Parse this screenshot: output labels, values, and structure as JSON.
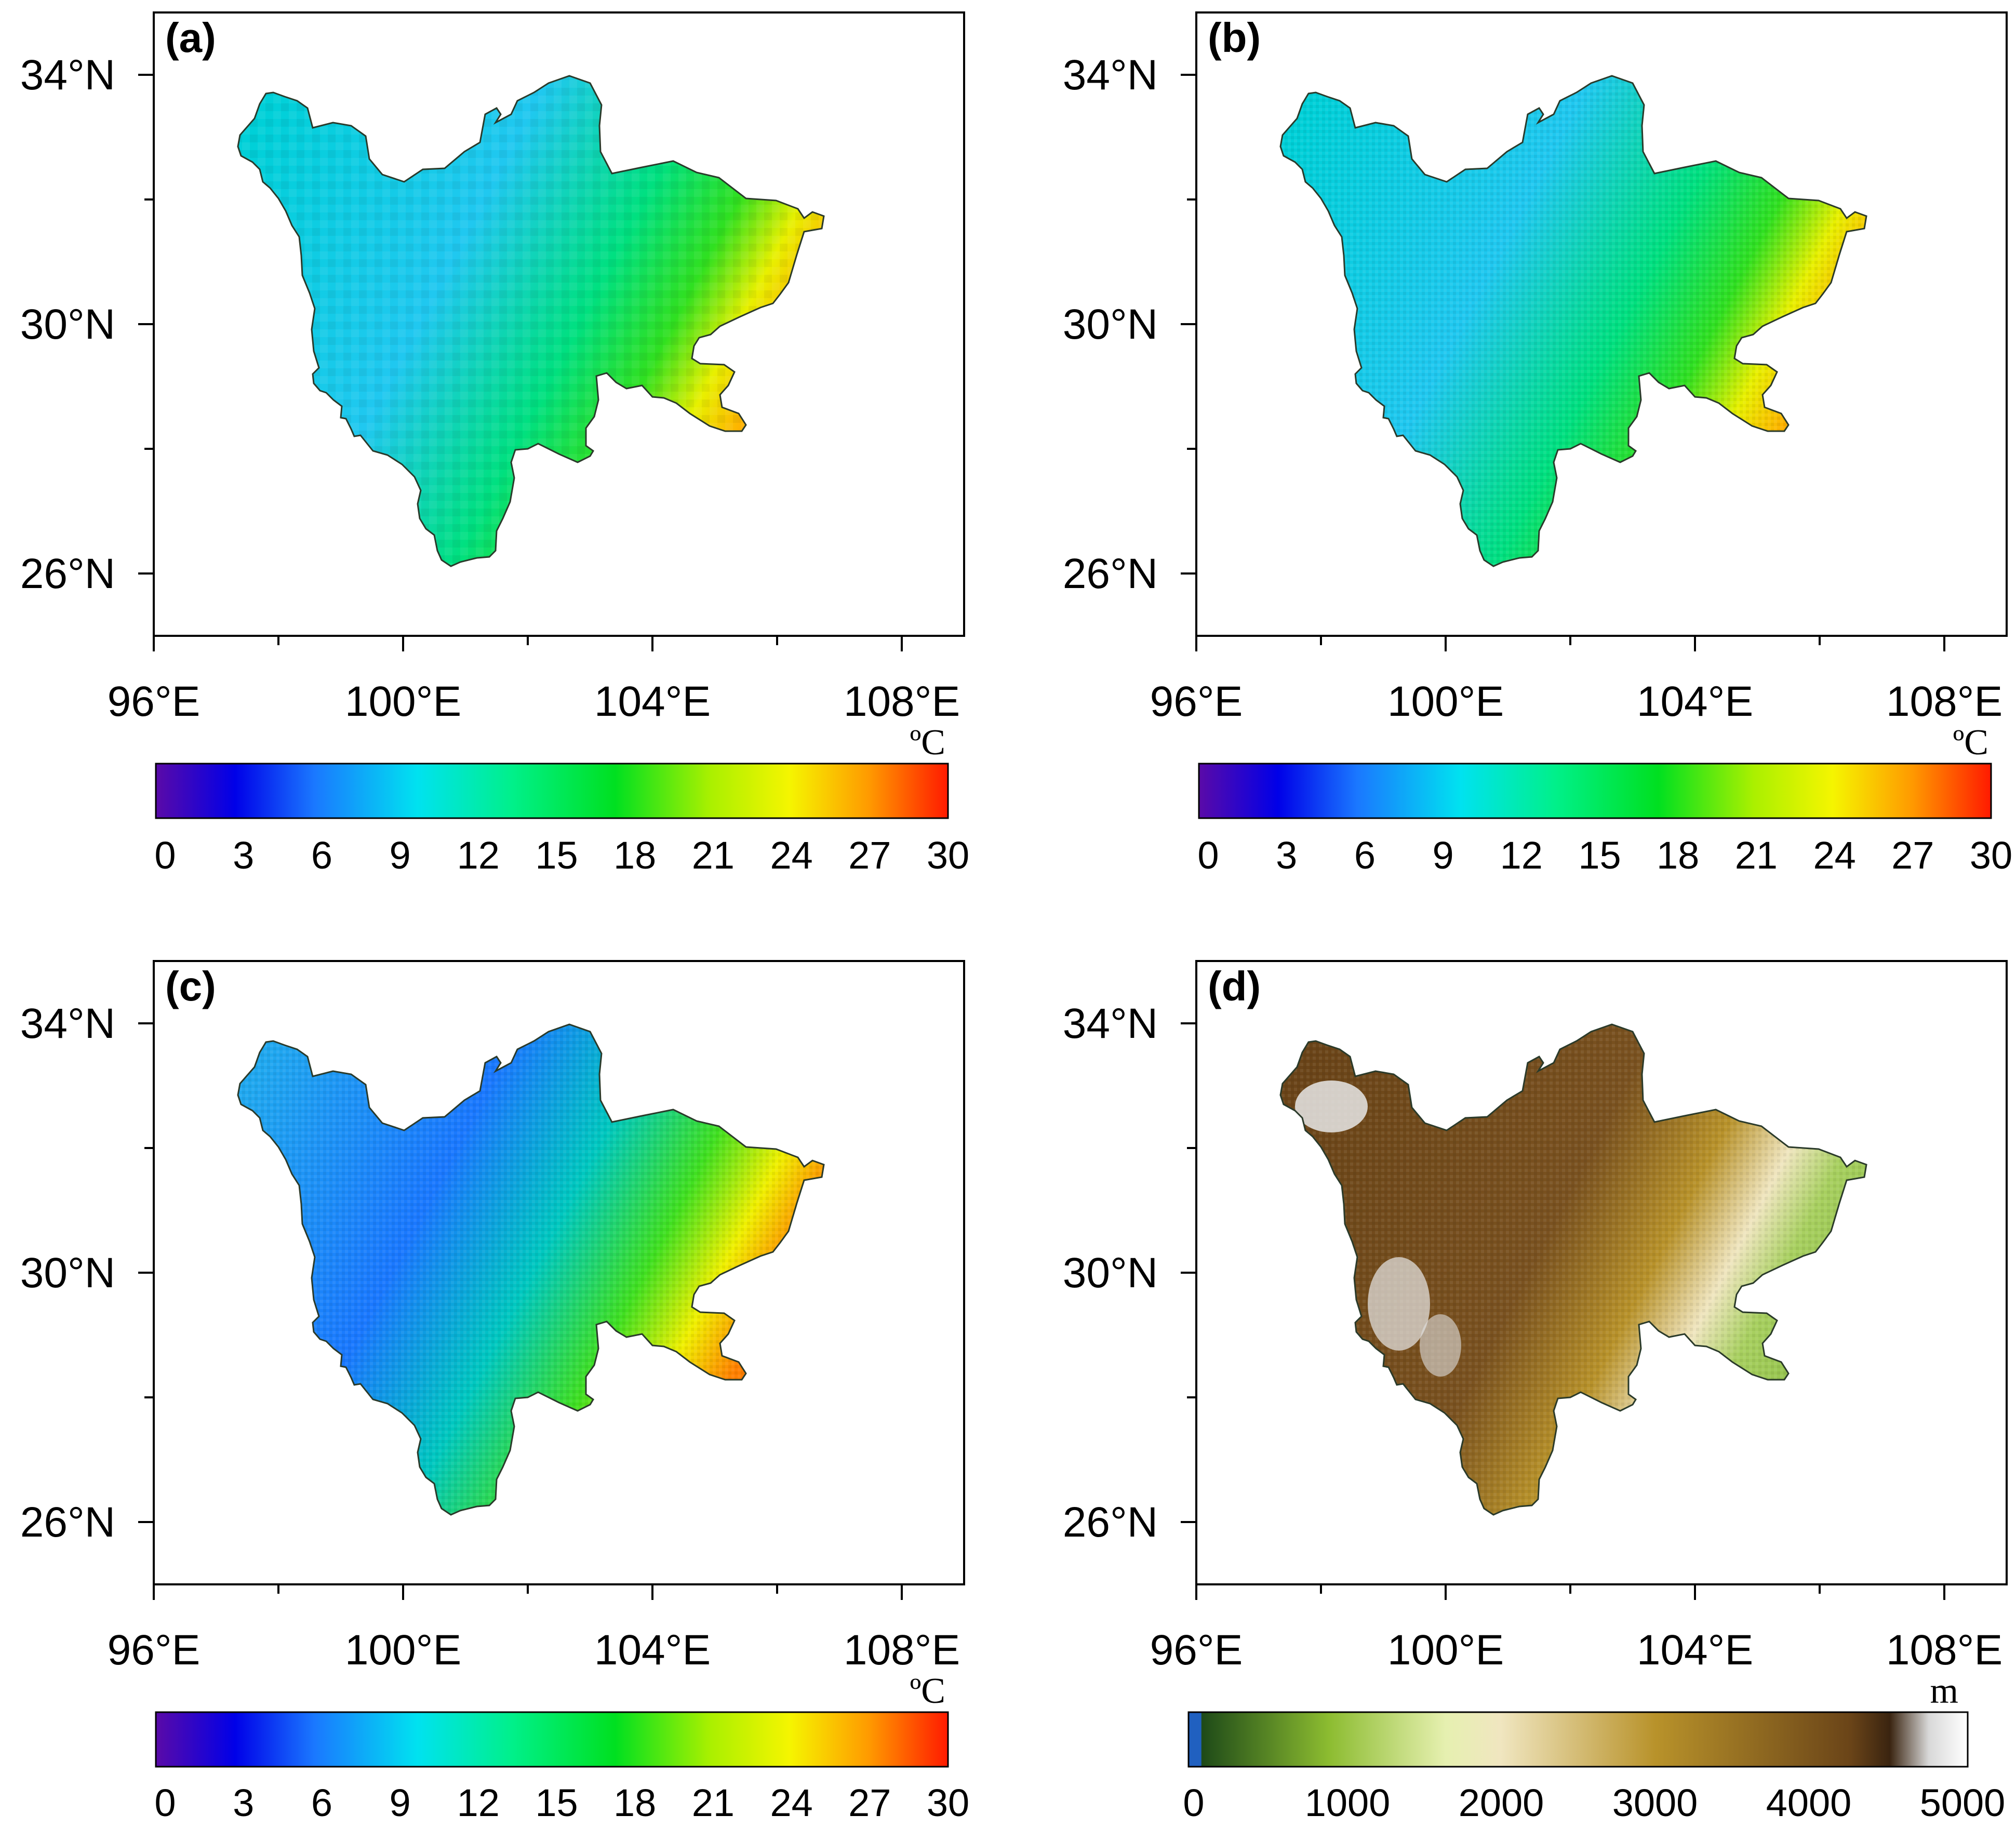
{
  "figure": {
    "latitude_ticks": [
      "34°N",
      "30°N",
      "26°N"
    ],
    "longitude_ticks": [
      "96°E",
      "100°E",
      "104°E",
      "108°E"
    ],
    "panels": [
      {
        "id": "a",
        "label": "(a)",
        "field": "temperature",
        "resolution": "coarse"
      },
      {
        "id": "b",
        "label": "(b)",
        "field": "temperature",
        "resolution": "medium"
      },
      {
        "id": "c",
        "label": "(c)",
        "field": "temperature",
        "resolution": "fine"
      },
      {
        "id": "d",
        "label": "(d)",
        "field": "elevation",
        "resolution": "fine"
      }
    ]
  },
  "colorbars": {
    "temperature": {
      "unit": "ºC",
      "ticks": [
        "0",
        "3",
        "6",
        "9",
        "12",
        "15",
        "18",
        "21",
        "24",
        "27",
        "30"
      ],
      "colors": [
        "#5a0aa8",
        "#0000e8",
        "#1a78ff",
        "#00e2f0",
        "#00f08a",
        "#00e020",
        "#aaf000",
        "#f5f500",
        "#ff9a00",
        "#ff1a00"
      ]
    },
    "elevation": {
      "unit": "m",
      "ticks": [
        "0",
        "1000",
        "2000",
        "3000",
        "4000",
        "5000"
      ],
      "colors": [
        "#2060c0",
        "#1e4a18",
        "#8cbc30",
        "#e6f0b0",
        "#f0e6c0",
        "#b8922a",
        "#6a4418",
        "#e0e0e0",
        "#ffffff"
      ]
    }
  }
}
